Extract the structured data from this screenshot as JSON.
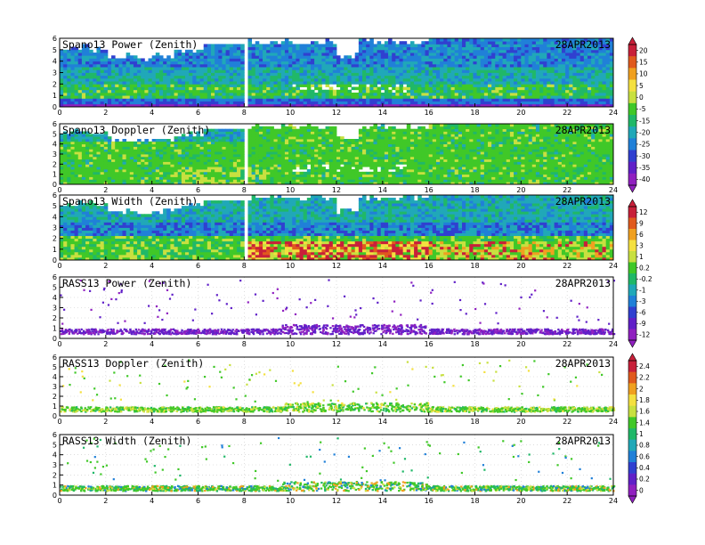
{
  "chart_data": [
    {
      "type": "heatmap",
      "title": "Spano13 Power (Zenith)",
      "date": "28APR2013",
      "xlim": [
        0,
        24
      ],
      "ylim": [
        0,
        6
      ],
      "xticks": [
        "0",
        "2",
        "4",
        "6",
        "8",
        "10",
        "12",
        "14",
        "16",
        "18",
        "20",
        "22",
        "24"
      ],
      "yticks": [
        "0",
        "1",
        "2",
        "3",
        "4",
        "5",
        "6"
      ],
      "colorbar": "power"
    },
    {
      "type": "heatmap",
      "title": "Spano13 Doppler (Zenith)",
      "date": "28APR2013",
      "xlim": [
        0,
        24
      ],
      "ylim": [
        0,
        6
      ],
      "xticks": [
        "0",
        "2",
        "4",
        "6",
        "8",
        "10",
        "12",
        "14",
        "16",
        "18",
        "20",
        "22",
        "24"
      ],
      "yticks": [
        "0",
        "1",
        "2",
        "3",
        "4",
        "5",
        "6"
      ],
      "colorbar": "power"
    },
    {
      "type": "heatmap",
      "title": "Spano13 Width (Zenith)",
      "date": "28APR2013",
      "xlim": [
        0,
        24
      ],
      "ylim": [
        0,
        6
      ],
      "xticks": [
        "0",
        "2",
        "4",
        "6",
        "8",
        "10",
        "12",
        "14",
        "16",
        "18",
        "20",
        "22",
        "24"
      ],
      "yticks": [
        "0",
        "1",
        "2",
        "3",
        "4",
        "5",
        "6"
      ],
      "colorbar": "width"
    },
    {
      "type": "scatter",
      "title": "RASS13 Power (Zenith)",
      "date": "28APR2013",
      "xlim": [
        0,
        24
      ],
      "ylim": [
        0,
        6
      ],
      "xticks": [
        "0",
        "2",
        "4",
        "6",
        "8",
        "10",
        "12",
        "14",
        "16",
        "18",
        "20",
        "22",
        "24"
      ],
      "yticks": [
        "0",
        "1",
        "2",
        "3",
        "4",
        "5",
        "6"
      ],
      "colorbar": "width",
      "grid": true
    },
    {
      "type": "scatter",
      "title": "RASS13 Doppler (Zenith)",
      "date": "28APR2013",
      "xlim": [
        0,
        24
      ],
      "ylim": [
        0,
        6
      ],
      "xticks": [
        "0",
        "2",
        "4",
        "6",
        "8",
        "10",
        "12",
        "14",
        "16",
        "18",
        "20",
        "22",
        "24"
      ],
      "yticks": [
        "0",
        "1",
        "2",
        "3",
        "4",
        "5",
        "6"
      ],
      "colorbar": "rass",
      "grid": true
    },
    {
      "type": "scatter",
      "title": "RASS13 Width (Zenith)",
      "date": "28APR2013",
      "xlim": [
        0,
        24
      ],
      "ylim": [
        0,
        6
      ],
      "xticks": [
        "0",
        "2",
        "4",
        "6",
        "8",
        "10",
        "12",
        "14",
        "16",
        "18",
        "20",
        "22",
        "24"
      ],
      "yticks": [
        "0",
        "1",
        "2",
        "3",
        "4",
        "5",
        "6"
      ],
      "colorbar": "rass",
      "grid": true
    }
  ],
  "colorbars": {
    "power": {
      "ticks": [
        "20",
        "15",
        "10",
        "5",
        "0",
        "-5",
        "-15",
        "-20",
        "-25",
        "-30",
        "-35",
        "-40"
      ],
      "colors": [
        "#c8203a",
        "#e05a1e",
        "#f0a020",
        "#f4e040",
        "#c8e040",
        "#40c828",
        "#20b868",
        "#20a8b8",
        "#2080d8",
        "#3040d0",
        "#6020c8",
        "#9020c0"
      ]
    },
    "width": {
      "ticks": [
        "12",
        "9",
        "6",
        "3",
        "1",
        "0.2",
        "-0.2",
        "-1",
        "-3",
        "-6",
        "-9",
        "-12"
      ],
      "colors": [
        "#c8203a",
        "#e05a1e",
        "#f0a020",
        "#f4e040",
        "#c8e040",
        "#40c828",
        "#20b868",
        "#20a8b8",
        "#2080d8",
        "#3040d0",
        "#6020c8",
        "#9020c0"
      ]
    },
    "rass": {
      "ticks": [
        "2.4",
        "2.2",
        "2",
        "1.8",
        "1.6",
        "1.4",
        "1",
        "0.8",
        "0.6",
        "0.4",
        "0.2",
        "0"
      ],
      "colors": [
        "#c8203a",
        "#e05a1e",
        "#f0a020",
        "#f4e040",
        "#c8e040",
        "#40c828",
        "#20b868",
        "#20a8b8",
        "#2080d8",
        "#3040d0",
        "#6020c8",
        "#9020c0"
      ]
    }
  }
}
